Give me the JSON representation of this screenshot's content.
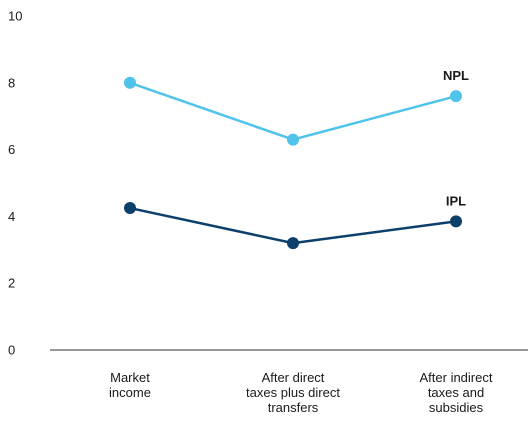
{
  "chart_data": {
    "type": "line",
    "categories": [
      [
        "Market",
        "income"
      ],
      [
        "After direct",
        "taxes plus direct",
        "transfers"
      ],
      [
        "After indirect",
        "taxes and",
        "subsidies"
      ]
    ],
    "series": [
      {
        "name": "NPL",
        "values": [
          8.0,
          6.3,
          7.6
        ],
        "color": "#4fc3ea"
      },
      {
        "name": "IPL",
        "values": [
          4.25,
          3.2,
          3.85
        ],
        "color": "#0d3f6b"
      }
    ],
    "y_ticks": [
      "0",
      "2",
      "4",
      "6",
      "8",
      "10"
    ],
    "ylim": [
      0,
      10
    ],
    "grid": false,
    "baseline_color": "#333333"
  }
}
